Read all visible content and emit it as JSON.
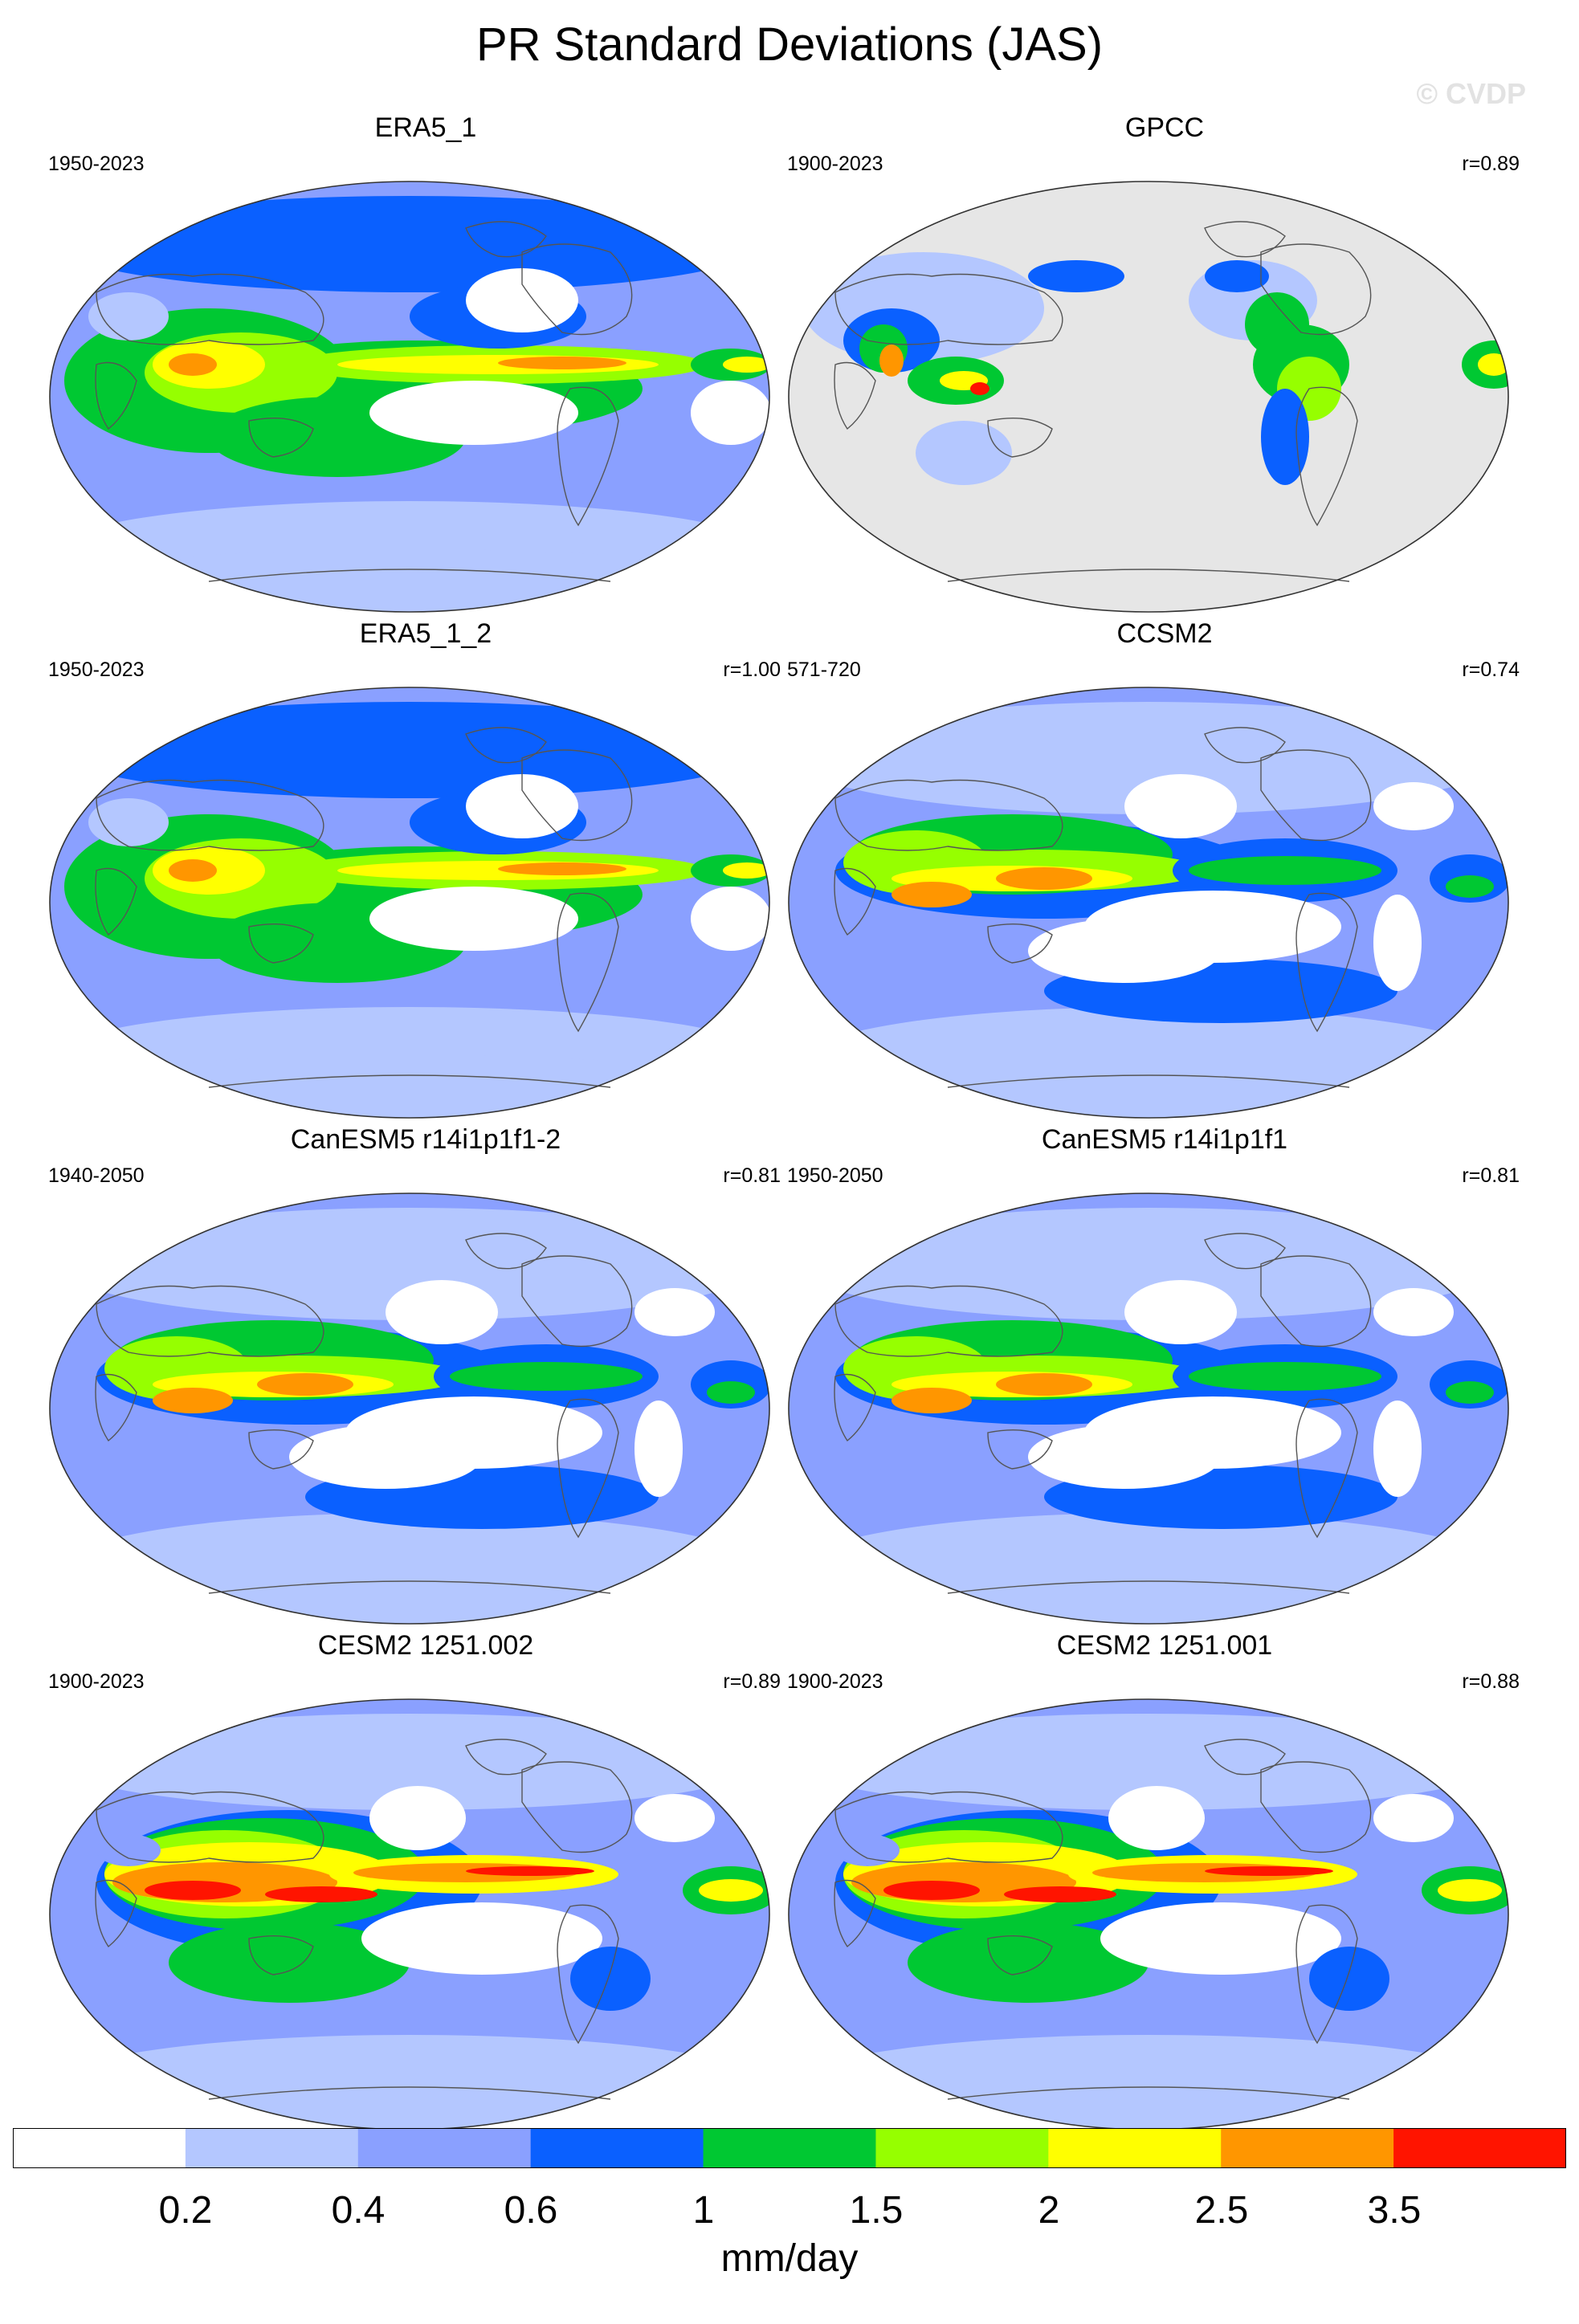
{
  "title": "PR Standard Deviations (JAS)",
  "watermark": "© CVDP",
  "colorbar": {
    "colors": [
      "#ffffff",
      "#b4c7ff",
      "#8aa0ff",
      "#0a60ff",
      "#00c832",
      "#96ff00",
      "#ffff00",
      "#ff9600",
      "#ff1400"
    ],
    "tick_labels": [
      "0.2",
      "0.4",
      "0.6",
      "1",
      "1.5",
      "2",
      "2.5",
      "3.5"
    ],
    "units": "mm/day"
  },
  "panels": [
    {
      "name": "ERA5_1",
      "years": "1950-2023",
      "r": ""
    },
    {
      "name": "GPCC",
      "years": "1900-2023",
      "r": "r=0.89"
    },
    {
      "name": "ERA5_1_2",
      "years": "1950-2023",
      "r": "r=1.00"
    },
    {
      "name": "CCSM2",
      "years": "571-720",
      "r": "r=0.74"
    },
    {
      "name": "CanESM5 r14i1p1f1-2",
      "years": "1940-2050",
      "r": "r=0.81"
    },
    {
      "name": "CanESM5 r14i1p1f1",
      "years": "1950-2050",
      "r": "r=0.81"
    },
    {
      "name": "CESM2 1251.002",
      "years": "1900-2023",
      "r": "r=0.89"
    },
    {
      "name": "CESM2 1251.001",
      "years": "1900-2023",
      "r": "r=0.88"
    }
  ]
}
